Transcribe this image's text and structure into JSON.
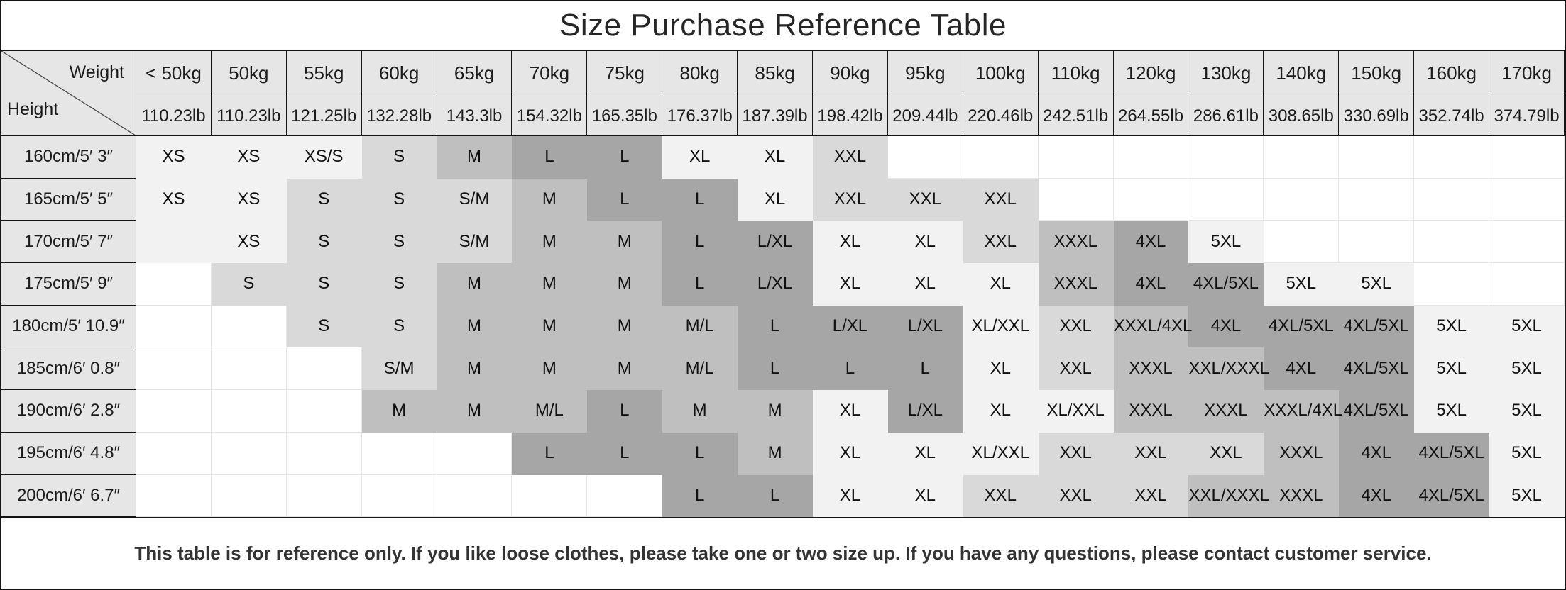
{
  "title": "Size Purchase Reference Table",
  "corner": {
    "weight_label": "Weight",
    "height_label": "Height"
  },
  "palette": {
    "W": "#ffffff",
    "P": "#f2f2f2",
    "L": "#d9d9d9",
    "M": "#bfbfbf",
    "D": "#a6a6a6",
    "header_bg": "#e6e6e6",
    "grid_line": "#e6e6e6",
    "frame_line": "#151515"
  },
  "columns": [
    {
      "kg": "< 50kg",
      "lb": "110.23lb"
    },
    {
      "kg": "50kg",
      "lb": "110.23lb"
    },
    {
      "kg": "55kg",
      "lb": "121.25lb"
    },
    {
      "kg": "60kg",
      "lb": "132.28lb"
    },
    {
      "kg": "65kg",
      "lb": "143.3lb"
    },
    {
      "kg": "70kg",
      "lb": "154.32lb"
    },
    {
      "kg": "75kg",
      "lb": "165.35lb"
    },
    {
      "kg": "80kg",
      "lb": "176.37lb"
    },
    {
      "kg": "85kg",
      "lb": "187.39lb"
    },
    {
      "kg": "90kg",
      "lb": "198.42lb"
    },
    {
      "kg": "95kg",
      "lb": "209.44lb"
    },
    {
      "kg": "100kg",
      "lb": "220.46lb"
    },
    {
      "kg": "110kg",
      "lb": "242.51lb"
    },
    {
      "kg": "120kg",
      "lb": "264.55lb"
    },
    {
      "kg": "130kg",
      "lb": "286.61lb"
    },
    {
      "kg": "140kg",
      "lb": "308.65lb"
    },
    {
      "kg": "150kg",
      "lb": "330.69lb"
    },
    {
      "kg": "160kg",
      "lb": "352.74lb"
    },
    {
      "kg": "170kg",
      "lb": "374.79lb"
    }
  ],
  "rows": [
    {
      "label": "160cm/5′ 3″",
      "cells": [
        {
          "t": "XS",
          "s": "P"
        },
        {
          "t": "XS",
          "s": "P"
        },
        {
          "t": "XS/S",
          "s": "P"
        },
        {
          "t": "S",
          "s": "L"
        },
        {
          "t": "M",
          "s": "M"
        },
        {
          "t": "L",
          "s": "D"
        },
        {
          "t": "L",
          "s": "D"
        },
        {
          "t": "XL",
          "s": "P"
        },
        {
          "t": "XL",
          "s": "P"
        },
        {
          "t": "XXL",
          "s": "L"
        },
        {
          "t": "",
          "s": "W"
        },
        {
          "t": "",
          "s": "W"
        },
        {
          "t": "",
          "s": "W"
        },
        {
          "t": "",
          "s": "W"
        },
        {
          "t": "",
          "s": "W"
        },
        {
          "t": "",
          "s": "W"
        },
        {
          "t": "",
          "s": "W"
        },
        {
          "t": "",
          "s": "W"
        },
        {
          "t": "",
          "s": "W"
        }
      ]
    },
    {
      "label": "165cm/5′ 5″",
      "cells": [
        {
          "t": "XS",
          "s": "P"
        },
        {
          "t": "XS",
          "s": "P"
        },
        {
          "t": "S",
          "s": "L"
        },
        {
          "t": "S",
          "s": "L"
        },
        {
          "t": "S/M",
          "s": "L"
        },
        {
          "t": "M",
          "s": "M"
        },
        {
          "t": "L",
          "s": "D"
        },
        {
          "t": "L",
          "s": "D"
        },
        {
          "t": "XL",
          "s": "P"
        },
        {
          "t": "XXL",
          "s": "L"
        },
        {
          "t": "XXL",
          "s": "L"
        },
        {
          "t": "XXL",
          "s": "L"
        },
        {
          "t": "",
          "s": "W"
        },
        {
          "t": "",
          "s": "W"
        },
        {
          "t": "",
          "s": "W"
        },
        {
          "t": "",
          "s": "W"
        },
        {
          "t": "",
          "s": "W"
        },
        {
          "t": "",
          "s": "W"
        },
        {
          "t": "",
          "s": "W"
        }
      ]
    },
    {
      "label": "170cm/5′ 7″",
      "cells": [
        {
          "t": "",
          "s": "P"
        },
        {
          "t": "XS",
          "s": "P"
        },
        {
          "t": "S",
          "s": "L"
        },
        {
          "t": "S",
          "s": "L"
        },
        {
          "t": "S/M",
          "s": "L"
        },
        {
          "t": "M",
          "s": "M"
        },
        {
          "t": "M",
          "s": "M"
        },
        {
          "t": "L",
          "s": "D"
        },
        {
          "t": "L/XL",
          "s": "D"
        },
        {
          "t": "XL",
          "s": "P"
        },
        {
          "t": "XL",
          "s": "P"
        },
        {
          "t": "XXL",
          "s": "L"
        },
        {
          "t": "XXXL",
          "s": "M"
        },
        {
          "t": "4XL",
          "s": "D"
        },
        {
          "t": "5XL",
          "s": "P"
        },
        {
          "t": "",
          "s": "W"
        },
        {
          "t": "",
          "s": "W"
        },
        {
          "t": "",
          "s": "W"
        },
        {
          "t": "",
          "s": "W"
        }
      ]
    },
    {
      "label": "175cm/5′ 9″",
      "cells": [
        {
          "t": "",
          "s": "W"
        },
        {
          "t": "S",
          "s": "L"
        },
        {
          "t": "S",
          "s": "L"
        },
        {
          "t": "S",
          "s": "L"
        },
        {
          "t": "M",
          "s": "M"
        },
        {
          "t": "M",
          "s": "M"
        },
        {
          "t": "M",
          "s": "M"
        },
        {
          "t": "L",
          "s": "D"
        },
        {
          "t": "L/XL",
          "s": "D"
        },
        {
          "t": "XL",
          "s": "P"
        },
        {
          "t": "XL",
          "s": "P"
        },
        {
          "t": "XL",
          "s": "P"
        },
        {
          "t": "XXXL",
          "s": "M"
        },
        {
          "t": "4XL",
          "s": "D"
        },
        {
          "t": "4XL/5XL",
          "s": "D"
        },
        {
          "t": "5XL",
          "s": "P"
        },
        {
          "t": "5XL",
          "s": "P"
        },
        {
          "t": "",
          "s": "W"
        },
        {
          "t": "",
          "s": "W"
        }
      ]
    },
    {
      "label": "180cm/5′ 10.9″",
      "cells": [
        {
          "t": "",
          "s": "W"
        },
        {
          "t": "",
          "s": "W"
        },
        {
          "t": "S",
          "s": "L"
        },
        {
          "t": "S",
          "s": "L"
        },
        {
          "t": "M",
          "s": "M"
        },
        {
          "t": "M",
          "s": "M"
        },
        {
          "t": "M",
          "s": "M"
        },
        {
          "t": "M/L",
          "s": "M"
        },
        {
          "t": "L",
          "s": "D"
        },
        {
          "t": "L/XL",
          "s": "D"
        },
        {
          "t": "L/XL",
          "s": "D"
        },
        {
          "t": "XL/XXL",
          "s": "P"
        },
        {
          "t": "XXL",
          "s": "L"
        },
        {
          "t": "XXXL/4XL",
          "s": "M"
        },
        {
          "t": "4XL",
          "s": "D"
        },
        {
          "t": "4XL/5XL",
          "s": "D"
        },
        {
          "t": "4XL/5XL",
          "s": "D"
        },
        {
          "t": "5XL",
          "s": "P"
        },
        {
          "t": "5XL",
          "s": "P"
        }
      ]
    },
    {
      "label": "185cm/6′ 0.8″",
      "cells": [
        {
          "t": "",
          "s": "W"
        },
        {
          "t": "",
          "s": "W"
        },
        {
          "t": "",
          "s": "W"
        },
        {
          "t": "S/M",
          "s": "L"
        },
        {
          "t": "M",
          "s": "M"
        },
        {
          "t": "M",
          "s": "M"
        },
        {
          "t": "M",
          "s": "M"
        },
        {
          "t": "M/L",
          "s": "M"
        },
        {
          "t": "L",
          "s": "D"
        },
        {
          "t": "L",
          "s": "D"
        },
        {
          "t": "L",
          "s": "D"
        },
        {
          "t": "XL",
          "s": "P"
        },
        {
          "t": "XXL",
          "s": "L"
        },
        {
          "t": "XXXL",
          "s": "M"
        },
        {
          "t": "XXL/XXXL",
          "s": "M"
        },
        {
          "t": "4XL",
          "s": "D"
        },
        {
          "t": "4XL/5XL",
          "s": "D"
        },
        {
          "t": "5XL",
          "s": "P"
        },
        {
          "t": "5XL",
          "s": "P"
        }
      ]
    },
    {
      "label": "190cm/6′ 2.8″",
      "cells": [
        {
          "t": "",
          "s": "W"
        },
        {
          "t": "",
          "s": "W"
        },
        {
          "t": "",
          "s": "W"
        },
        {
          "t": "M",
          "s": "M"
        },
        {
          "t": "M",
          "s": "M"
        },
        {
          "t": "M/L",
          "s": "M"
        },
        {
          "t": "L",
          "s": "D"
        },
        {
          "t": "M",
          "s": "M"
        },
        {
          "t": "M",
          "s": "M"
        },
        {
          "t": "XL",
          "s": "P"
        },
        {
          "t": "L/XL",
          "s": "D"
        },
        {
          "t": "XL",
          "s": "P"
        },
        {
          "t": "XL/XXL",
          "s": "P"
        },
        {
          "t": "XXXL",
          "s": "M"
        },
        {
          "t": "XXXL",
          "s": "M"
        },
        {
          "t": "XXXL/4XL",
          "s": "M"
        },
        {
          "t": "4XL/5XL",
          "s": "D"
        },
        {
          "t": "5XL",
          "s": "P"
        },
        {
          "t": "5XL",
          "s": "P"
        }
      ]
    },
    {
      "label": "195cm/6′ 4.8″",
      "cells": [
        {
          "t": "",
          "s": "W"
        },
        {
          "t": "",
          "s": "W"
        },
        {
          "t": "",
          "s": "W"
        },
        {
          "t": "",
          "s": "W"
        },
        {
          "t": "",
          "s": "W"
        },
        {
          "t": "L",
          "s": "D"
        },
        {
          "t": "L",
          "s": "D"
        },
        {
          "t": "L",
          "s": "D"
        },
        {
          "t": "M",
          "s": "M"
        },
        {
          "t": "XL",
          "s": "P"
        },
        {
          "t": "XL",
          "s": "P"
        },
        {
          "t": "XL/XXL",
          "s": "P"
        },
        {
          "t": "XXL",
          "s": "L"
        },
        {
          "t": "XXL",
          "s": "L"
        },
        {
          "t": "XXL",
          "s": "L"
        },
        {
          "t": "XXXL",
          "s": "M"
        },
        {
          "t": "4XL",
          "s": "D"
        },
        {
          "t": "4XL/5XL",
          "s": "D"
        },
        {
          "t": "5XL",
          "s": "P"
        }
      ]
    },
    {
      "label": "200cm/6′ 6.7″",
      "cells": [
        {
          "t": "",
          "s": "W"
        },
        {
          "t": "",
          "s": "W"
        },
        {
          "t": "",
          "s": "W"
        },
        {
          "t": "",
          "s": "W"
        },
        {
          "t": "",
          "s": "W"
        },
        {
          "t": "",
          "s": "W"
        },
        {
          "t": "",
          "s": "W"
        },
        {
          "t": "L",
          "s": "D"
        },
        {
          "t": "L",
          "s": "D"
        },
        {
          "t": "XL",
          "s": "P"
        },
        {
          "t": "XL",
          "s": "P"
        },
        {
          "t": "XXL",
          "s": "L"
        },
        {
          "t": "XXL",
          "s": "L"
        },
        {
          "t": "XXL",
          "s": "L"
        },
        {
          "t": "XXL/XXXL",
          "s": "M"
        },
        {
          "t": "XXXL",
          "s": "M"
        },
        {
          "t": "4XL",
          "s": "D"
        },
        {
          "t": "4XL/5XL",
          "s": "D"
        },
        {
          "t": "5XL",
          "s": "P"
        }
      ]
    }
  ],
  "footer": {
    "note": "This table is for reference only. If you like loose clothes, please take one or two size up. If you have any questions, please contact customer service."
  }
}
